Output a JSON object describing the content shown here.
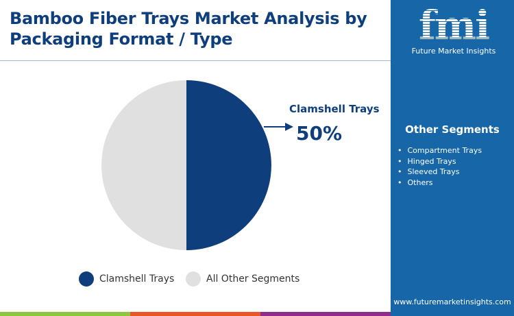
{
  "title": "Bamboo Fiber Trays Market Analysis by Packaging Format / Type",
  "logo": {
    "mark": "fmi",
    "name": "Future Market Insights"
  },
  "side_panel": {
    "title": "Other Segments",
    "items": [
      "Compartment Trays",
      "Hinged Trays",
      "Sleeved Trays",
      "Others"
    ],
    "url": "www.futuremarketinsights.com"
  },
  "colors": {
    "primary": "#0e3f7c",
    "other": "#e0e0e0",
    "panel": "#1766a8",
    "bars": [
      "#8dc63f",
      "#e8572a",
      "#8e2d8c"
    ]
  },
  "chart_data": {
    "type": "pie",
    "slices": [
      {
        "label": "Clamshell Trays",
        "value": 50,
        "color": "#0e3f7c"
      },
      {
        "label": "All Other Segments",
        "value": 50,
        "color": "#e0e0e0"
      }
    ],
    "annotation": {
      "label": "Clamshell Trays",
      "value": "50%"
    },
    "legend": "bottom"
  }
}
